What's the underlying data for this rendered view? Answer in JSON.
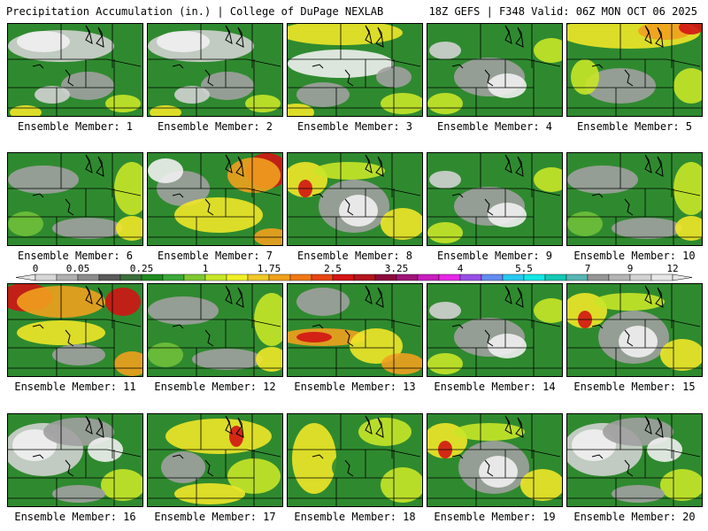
{
  "header": {
    "title_left": "Precipitation Accumulation (in.) | College of DuPage NEXLAB",
    "title_right": "18Z GEFS | F348 Valid: 06Z MON OCT 06 2025"
  },
  "colorbar": {
    "tick_labels": [
      "0",
      "0.05",
      "0.25",
      "1",
      "1.75",
      "2.5",
      "3.25",
      "4",
      "5.5",
      "7",
      "9",
      "12"
    ],
    "colors": [
      "#d7d7d7",
      "#b0b0b0",
      "#8c8c8c",
      "#5a5a5a",
      "#3c6e3c",
      "#1f8a1f",
      "#3aa83a",
      "#7fc832",
      "#c8e628",
      "#f0f028",
      "#f0c828",
      "#f0a01e",
      "#f07814",
      "#e64614",
      "#d21414",
      "#b4141e",
      "#8c0a3c",
      "#a01478",
      "#c81ebe",
      "#e628e6",
      "#9650e6",
      "#648cf0",
      "#28c8f0",
      "#14e6e6",
      "#14c8b4",
      "#5ab4b4",
      "#969696",
      "#b4b4b4",
      "#d2d2d2",
      "#e6e6e6"
    ]
  },
  "members": [
    {
      "label": "Ensemble Member: 1",
      "pattern": "gray_north"
    },
    {
      "label": "Ensemble Member: 2",
      "pattern": "gray_north"
    },
    {
      "label": "Ensemble Member: 3",
      "pattern": "gray_band"
    },
    {
      "label": "Ensemble Member: 4",
      "pattern": "gray_center"
    },
    {
      "label": "Ensemble Member: 5",
      "pattern": "wet_north"
    },
    {
      "label": "Ensemble Member: 6",
      "pattern": "green_mix"
    },
    {
      "label": "Ensemble Member: 7",
      "pattern": "wet_ne"
    },
    {
      "label": "Ensemble Member: 8",
      "pattern": "yellow_gray"
    },
    {
      "label": "Ensemble Member: 9",
      "pattern": "gray_center"
    },
    {
      "label": "Ensemble Member: 10",
      "pattern": "green_mix"
    },
    {
      "label": "Ensemble Member: 11",
      "pattern": "wet_nw"
    },
    {
      "label": "Ensemble Member: 12",
      "pattern": "green_mix"
    },
    {
      "label": "Ensemble Member: 13",
      "pattern": "wet_band"
    },
    {
      "label": "Ensemble Member: 14",
      "pattern": "gray_center"
    },
    {
      "label": "Ensemble Member: 15",
      "pattern": "yellow_gray"
    },
    {
      "label": "Ensemble Member: 16",
      "pattern": "gray_west"
    },
    {
      "label": "Ensemble Member: 17",
      "pattern": "yellow_mix"
    },
    {
      "label": "Ensemble Member: 18",
      "pattern": "green_plain"
    },
    {
      "label": "Ensemble Member: 19",
      "pattern": "yellow_gray"
    },
    {
      "label": "Ensemble Member: 20",
      "pattern": "gray_west"
    }
  ],
  "palette": {
    "green": "#2f8a2f",
    "lightgreen": "#6fbf3a",
    "yellowgreen": "#c8e628",
    "yellow": "#f0e628",
    "orange": "#f0a01e",
    "red": "#d21414",
    "gray": "#a0a0a0",
    "lightgray": "#d2d2d2",
    "white": "#f0f0f0"
  }
}
